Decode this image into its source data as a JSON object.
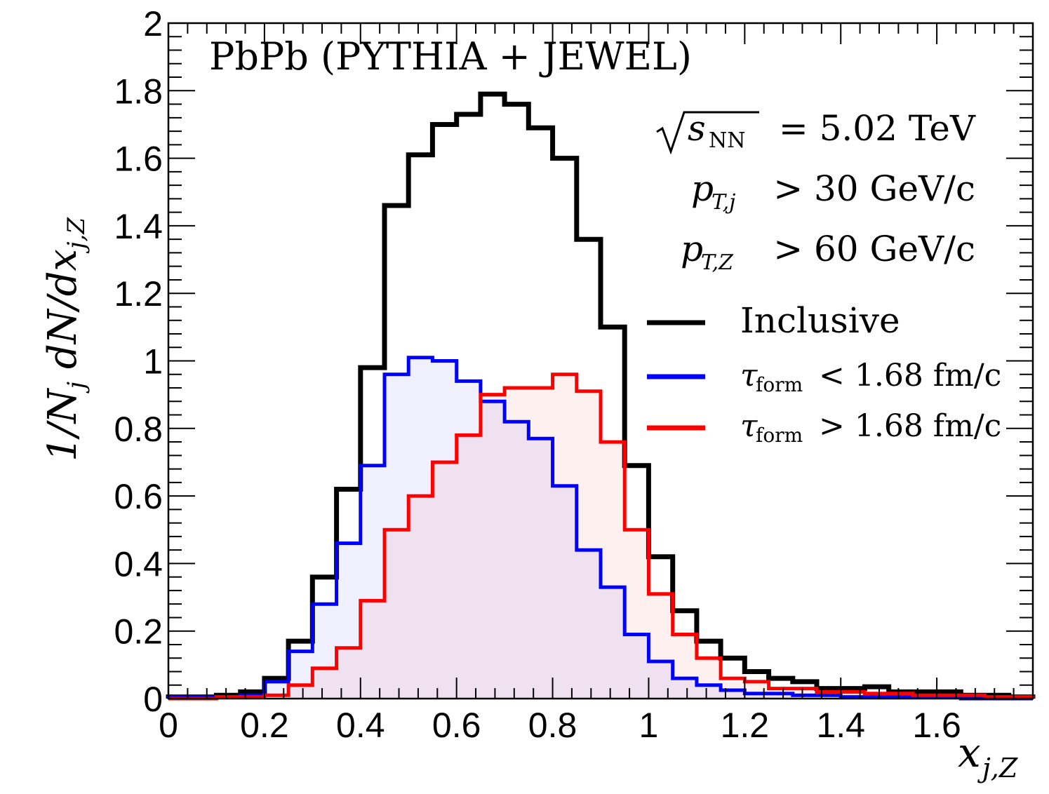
{
  "chart_data": {
    "type": "step-histogram",
    "title": "PbPb (PYTHIA + JEWEL)",
    "annotations": {
      "energy": {
        "lhs": "s",
        "sub": "NN",
        "rhs": "= 5.02 TeV"
      },
      "jet_cut": {
        "var": "p",
        "sub": "T,j",
        "rhs": "> 30 GeV/c"
      },
      "z_cut": {
        "var": "p",
        "sub": "T,Z",
        "rhs": "> 60 GeV/c"
      }
    },
    "xlabel": {
      "var": "x",
      "sub": "j,Z"
    },
    "ylabel": "1/N_j dN/dx_j,Z",
    "xlim": [
      0,
      1.8
    ],
    "ylim": [
      0,
      2
    ],
    "x_ticks": [
      "0",
      "0.2",
      "0.4",
      "0.6",
      "0.8",
      "1",
      "1.2",
      "1.4",
      "1.6"
    ],
    "x_tick_values": [
      0,
      0.2,
      0.4,
      0.6,
      0.8,
      1.0,
      1.2,
      1.4,
      1.6
    ],
    "y_ticks": [
      "0",
      "0.2",
      "0.4",
      "0.6",
      "0.8",
      "1",
      "1.2",
      "1.4",
      "1.6",
      "1.8",
      "2"
    ],
    "y_tick_values": [
      0,
      0.2,
      0.4,
      0.6,
      0.8,
      1.0,
      1.2,
      1.4,
      1.6,
      1.8,
      2.0
    ],
    "bin_edges": [
      0,
      0.05,
      0.1,
      0.15,
      0.2,
      0.25,
      0.3,
      0.35,
      0.4,
      0.45,
      0.5,
      0.55,
      0.6,
      0.65,
      0.7,
      0.75,
      0.8,
      0.85,
      0.9,
      0.95,
      1.0,
      1.05,
      1.1,
      1.15,
      1.2,
      1.25,
      1.3,
      1.35,
      1.4,
      1.45,
      1.5,
      1.55,
      1.6,
      1.65,
      1.7,
      1.75,
      1.8
    ],
    "series": [
      {
        "name": "Inclusive",
        "color": "#000000",
        "fill": "none",
        "values": [
          0.005,
          0.005,
          0.01,
          0.02,
          0.06,
          0.17,
          0.36,
          0.62,
          0.98,
          1.46,
          1.61,
          1.7,
          1.73,
          1.79,
          1.76,
          1.69,
          1.6,
          1.36,
          1.1,
          0.69,
          0.42,
          0.26,
          0.17,
          0.12,
          0.08,
          0.06,
          0.05,
          0.03,
          0.03,
          0.035,
          0.02,
          0.02,
          0.02,
          0.01,
          0.01,
          0.005
        ]
      },
      {
        "name": "τ_form < 1.68 fm/c",
        "legend": {
          "var": "τ",
          "sub": "form",
          "rhs": "< 1.68 fm/c"
        },
        "color": "#0000ff",
        "fill": "#0000ff",
        "values": [
          0.005,
          0.005,
          0.005,
          0.01,
          0.05,
          0.14,
          0.28,
          0.46,
          0.69,
          0.96,
          1.01,
          1.0,
          0.94,
          0.88,
          0.82,
          0.77,
          0.63,
          0.44,
          0.33,
          0.19,
          0.11,
          0.06,
          0.04,
          0.025,
          0.015,
          0.015,
          0.01,
          0.01,
          0.005,
          0.005,
          0.005,
          0.005,
          0.005,
          0.0,
          0.0,
          0.0
        ]
      },
      {
        "name": "τ_form > 1.68 fm/c",
        "legend": {
          "var": "τ",
          "sub": "form",
          "rhs": "> 1.68 fm/c"
        },
        "color": "#ff0000",
        "fill": "#ff0000",
        "values": [
          0.0,
          0.0,
          0.005,
          0.005,
          0.01,
          0.04,
          0.09,
          0.15,
          0.29,
          0.5,
          0.6,
          0.7,
          0.78,
          0.9,
          0.92,
          0.92,
          0.96,
          0.91,
          0.76,
          0.5,
          0.31,
          0.19,
          0.12,
          0.06,
          0.05,
          0.03,
          0.03,
          0.02,
          0.02,
          0.015,
          0.015,
          0.01,
          0.01,
          0.01,
          0.005,
          0.005
        ]
      }
    ],
    "legend": [
      "Inclusive",
      "τ_form < 1.68 fm/c",
      "τ_form > 1.68 fm/c"
    ],
    "grid": false
  }
}
